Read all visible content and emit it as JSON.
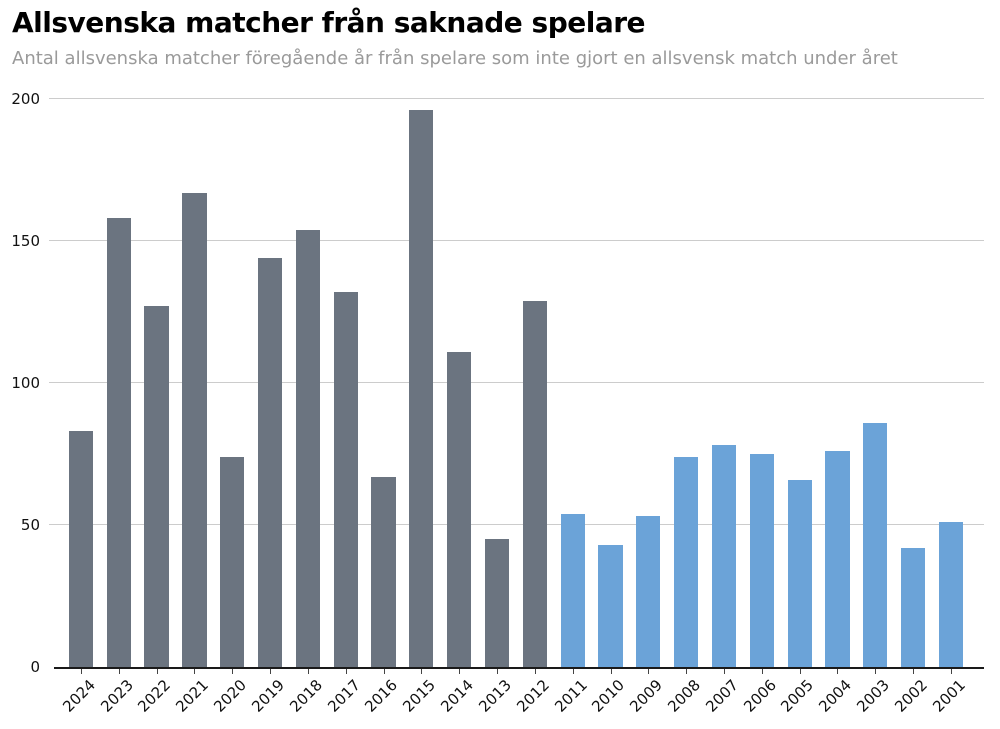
{
  "chart_data": {
    "type": "bar",
    "title": "Allsvenska matcher från saknade spelare",
    "subtitle": "Antal allsvenska matcher föregående år från spelare som inte gjort en allsvensk match under året",
    "categories": [
      "2024",
      "2023",
      "2022",
      "2021",
      "2020",
      "2019",
      "2018",
      "2017",
      "2016",
      "2015",
      "2014",
      "2013",
      "2012",
      "2011",
      "2010",
      "2009",
      "2008",
      "2007",
      "2006",
      "2005",
      "2004",
      "2003",
      "2002",
      "2001"
    ],
    "values": [
      83,
      158,
      127,
      167,
      74,
      144,
      154,
      132,
      67,
      196,
      111,
      45,
      129,
      54,
      43,
      53,
      74,
      78,
      75,
      66,
      76,
      86,
      42,
      51
    ],
    "bar_groups": [
      "gray",
      "gray",
      "gray",
      "gray",
      "gray",
      "gray",
      "gray",
      "gray",
      "gray",
      "gray",
      "gray",
      "gray",
      "gray",
      "blue",
      "blue",
      "blue",
      "blue",
      "blue",
      "blue",
      "blue",
      "blue",
      "blue",
      "blue",
      "blue"
    ],
    "colors": {
      "gray": "#6b7480",
      "blue": "#6ba3d8",
      "gridline": "#cccccc",
      "axis_line": "#1a1a1a",
      "subtitle_text": "#9a9a9a",
      "tick_text": "#111111"
    },
    "yticks": [
      0,
      50,
      100,
      150,
      200
    ],
    "ylim": [
      0,
      200
    ],
    "xlabel": "",
    "ylabel": "",
    "grid": "horizontal",
    "legend": "none",
    "x_tick_rotation_deg": 45
  }
}
